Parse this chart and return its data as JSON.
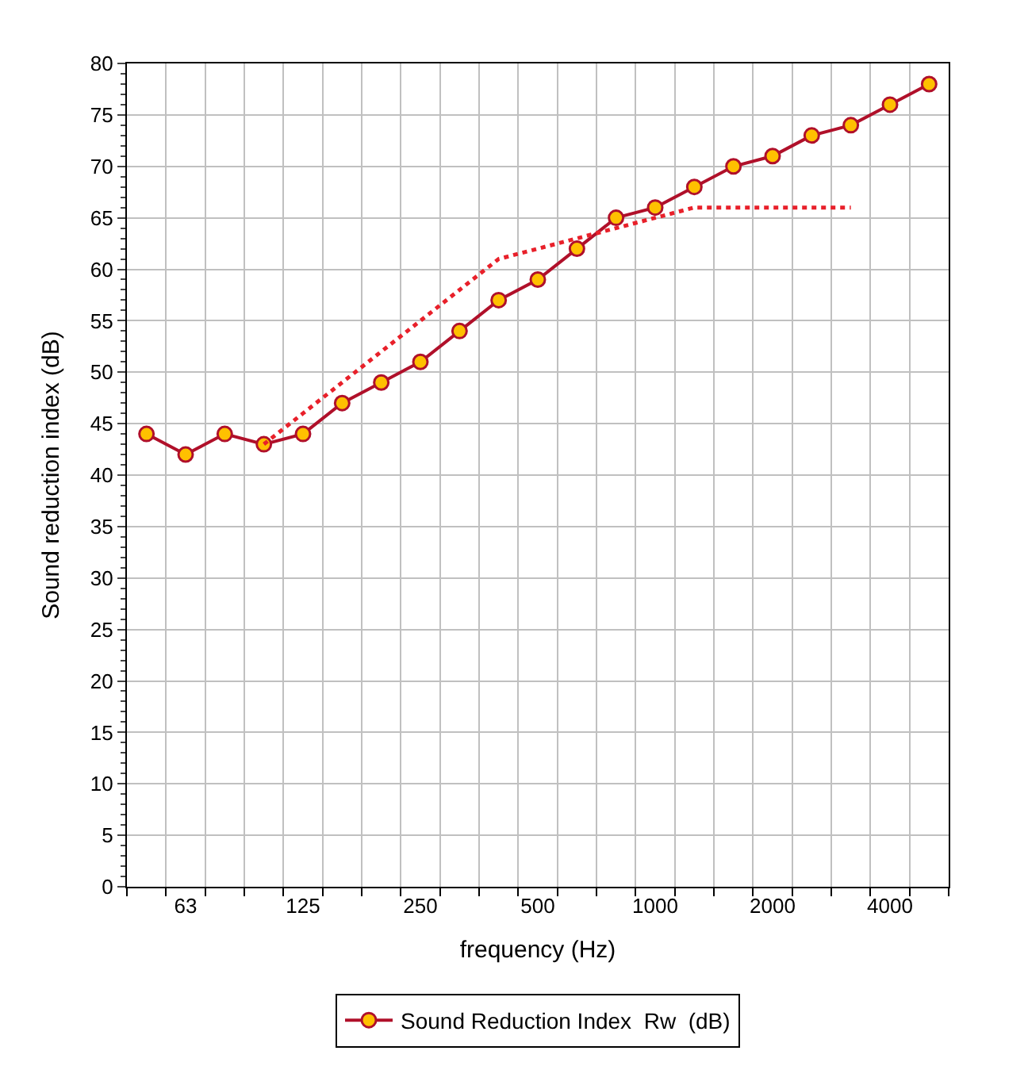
{
  "chart_data": {
    "type": "line",
    "xlabel": "frequency (Hz)",
    "ylabel": "Sound reduction index (dB)",
    "categories": [
      null,
      "63",
      null,
      null,
      "125",
      null,
      null,
      "250",
      null,
      null,
      "500",
      null,
      null,
      "1000",
      null,
      null,
      "2000",
      null,
      null,
      "4000",
      null
    ],
    "series": [
      {
        "name": "Sound Reduction Index  Rw  (dB)",
        "color": "#b0102a",
        "marker": "circle",
        "line_style": "solid",
        "values": [
          44,
          42,
          44,
          43,
          44,
          47,
          49,
          51,
          54,
          57,
          59,
          62,
          65,
          66,
          68,
          70,
          71,
          73,
          74,
          76,
          78
        ]
      },
      {
        "color": "#e8202a",
        "marker": "none",
        "line_style": "dotted",
        "values": [
          null,
          null,
          null,
          43,
          46,
          49,
          52,
          55,
          58,
          61,
          62,
          63,
          64,
          65,
          66,
          66,
          66,
          66,
          66,
          null,
          null
        ]
      }
    ],
    "ylim": [
      0,
      80
    ],
    "yticks": [
      0,
      5,
      10,
      15,
      20,
      25,
      30,
      35,
      40,
      45,
      50,
      55,
      60,
      65,
      70,
      75,
      80
    ],
    "grid": true,
    "legend": "bottom"
  }
}
